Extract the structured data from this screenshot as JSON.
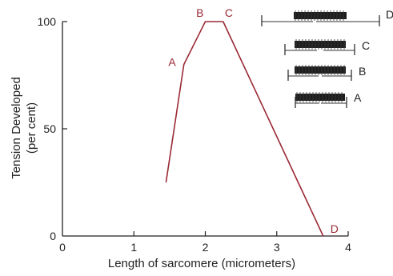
{
  "chart_data": {
    "type": "line",
    "title": "",
    "xlabel": "Length of sarcomere (micrometers)",
    "ylabel_line1": "Tension Developed",
    "ylabel_line2": "(per cent)",
    "xlim": [
      0,
      4
    ],
    "ylim": [
      0,
      100
    ],
    "x_ticks": [
      "0",
      "1",
      "2",
      "3",
      "4"
    ],
    "y_ticks": [
      "0",
      "50",
      "100"
    ],
    "grid": false,
    "line_color": "#9b2a35",
    "series": [
      {
        "x": [
          1.45,
          1.7,
          2.0,
          2.25,
          3.65
        ],
        "y": [
          25,
          80,
          100,
          100,
          0
        ]
      }
    ],
    "point_labels": [
      {
        "text": "A",
        "x": 1.7,
        "y": 80
      },
      {
        "text": "B",
        "x": 2.0,
        "y": 100
      },
      {
        "text": "C",
        "x": 2.25,
        "y": 100
      },
      {
        "text": "D",
        "x": 3.65,
        "y": 0
      }
    ],
    "sarcomere_diagrams": [
      {
        "label": "D"
      },
      {
        "label": "C"
      },
      {
        "label": "B"
      },
      {
        "label": "A"
      }
    ]
  }
}
